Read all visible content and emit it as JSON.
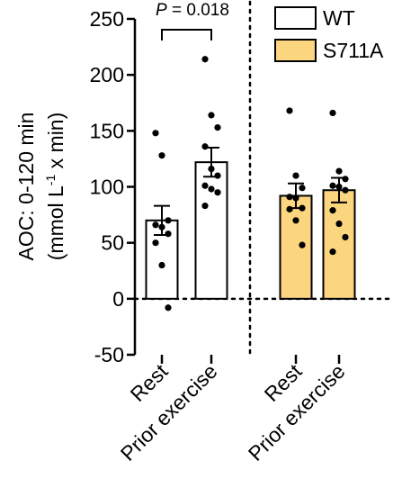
{
  "chart_data": {
    "type": "bar",
    "ylabel_line1": "AOC: 0-120 min",
    "ylabel_line2_prefix": "(mmol L",
    "ylabel_line2_sup": "-1",
    "ylabel_line2_suffix": " x min)",
    "ylim": [
      -50,
      250
    ],
    "yticks": [
      "-50",
      "0",
      "50",
      "100",
      "150",
      "200",
      "250"
    ],
    "ytick_values": [
      -50,
      0,
      50,
      100,
      150,
      200,
      250
    ],
    "categories": [
      "Rest",
      "Prior exercise",
      "Rest",
      "Prior exercise"
    ],
    "groups": [
      {
        "name": "WT",
        "color": "#ffffff",
        "mean": 70,
        "sem": 13,
        "points": [
          148,
          128,
          70,
          66,
          64,
          58,
          50,
          30,
          -8
        ]
      },
      {
        "name": "WT",
        "color": "#ffffff",
        "mean": 122,
        "sem": 13,
        "points": [
          214,
          164,
          153,
          136,
          116,
          110,
          101,
          98,
          95,
          83
        ]
      },
      {
        "name": "S711A",
        "color": "#fbd67e",
        "mean": 92,
        "sem": 11,
        "points": [
          168,
          110,
          99,
          91,
          90,
          81,
          80,
          70,
          48
        ]
      },
      {
        "name": "S711A",
        "color": "#fbd67e",
        "mean": 97,
        "sem": 11,
        "points": [
          166,
          114,
          107,
          101,
          100,
          97,
          79,
          67,
          55,
          42
        ]
      }
    ],
    "significance": {
      "p_label": "P",
      "p_value": " = 0.018",
      "from": 0,
      "to": 1
    },
    "legend": [
      {
        "name": "WT",
        "color": "#ffffff"
      },
      {
        "name": "S711A",
        "color": "#fbd67e"
      }
    ],
    "legend_position": "top-right",
    "grid": false
  }
}
